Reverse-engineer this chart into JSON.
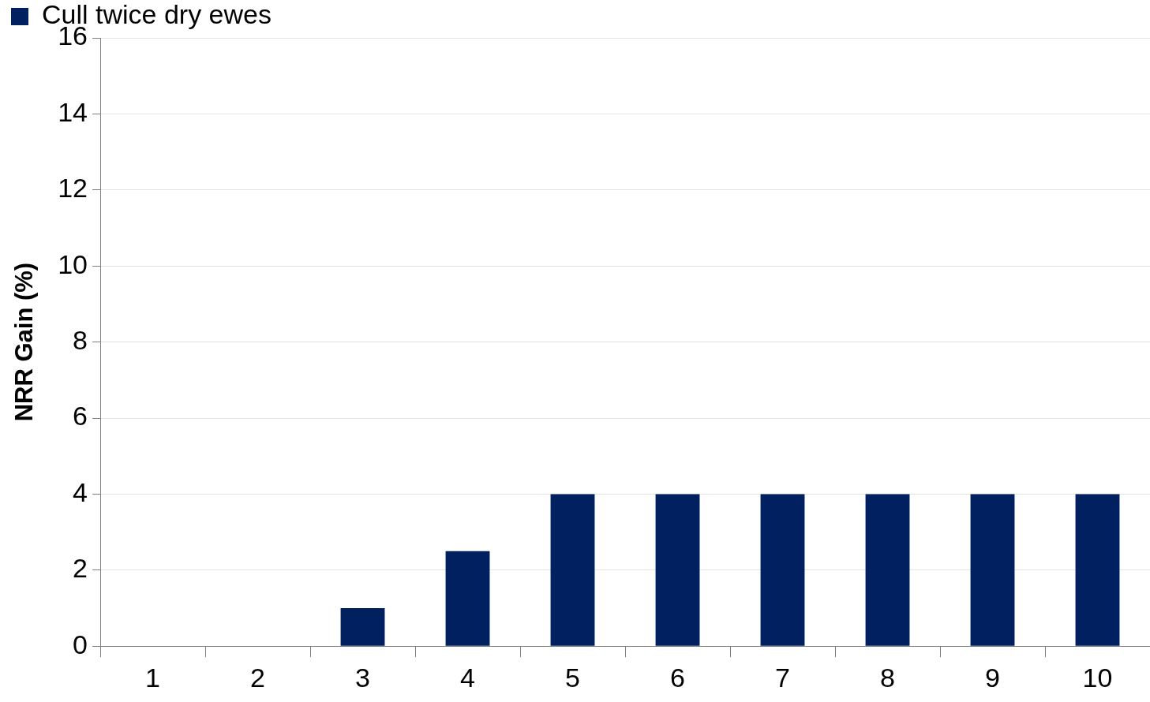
{
  "chart_data": {
    "type": "bar",
    "ylabel": "NRR Gain (%)",
    "categories": [
      "1",
      "2",
      "3",
      "4",
      "5",
      "6",
      "7",
      "8",
      "9",
      "10"
    ],
    "series": [
      {
        "name": "Cull twice dry ewes",
        "color": "#002060",
        "values": [
          0,
          0,
          1,
          2.5,
          4,
          4,
          4,
          4,
          4,
          4
        ]
      }
    ],
    "ylim": [
      0,
      16
    ],
    "yticks": [
      0,
      2,
      4,
      6,
      8,
      10,
      12,
      14,
      16
    ],
    "grid": "y",
    "legend": "top left"
  }
}
